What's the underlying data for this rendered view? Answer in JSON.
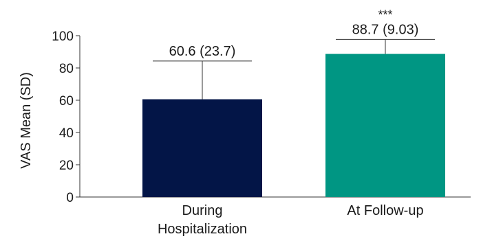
{
  "chart_data": {
    "type": "bar",
    "ylabel": "VAS Mean (SD)",
    "ylim": [
      0,
      100
    ],
    "yticks": [
      0,
      20,
      40,
      60,
      80,
      100
    ],
    "grid": false,
    "categories": [
      [
        "During",
        "Hospitalization"
      ],
      [
        "At Follow-up"
      ]
    ],
    "values": [
      60.6,
      88.7
    ],
    "error_sd": [
      23.7,
      9.03
    ],
    "data_labels": [
      "60.6 (23.7)",
      "88.7 (9.03)"
    ],
    "significance": [
      "",
      "***"
    ],
    "colors": [
      "#031547",
      "#009683"
    ]
  }
}
